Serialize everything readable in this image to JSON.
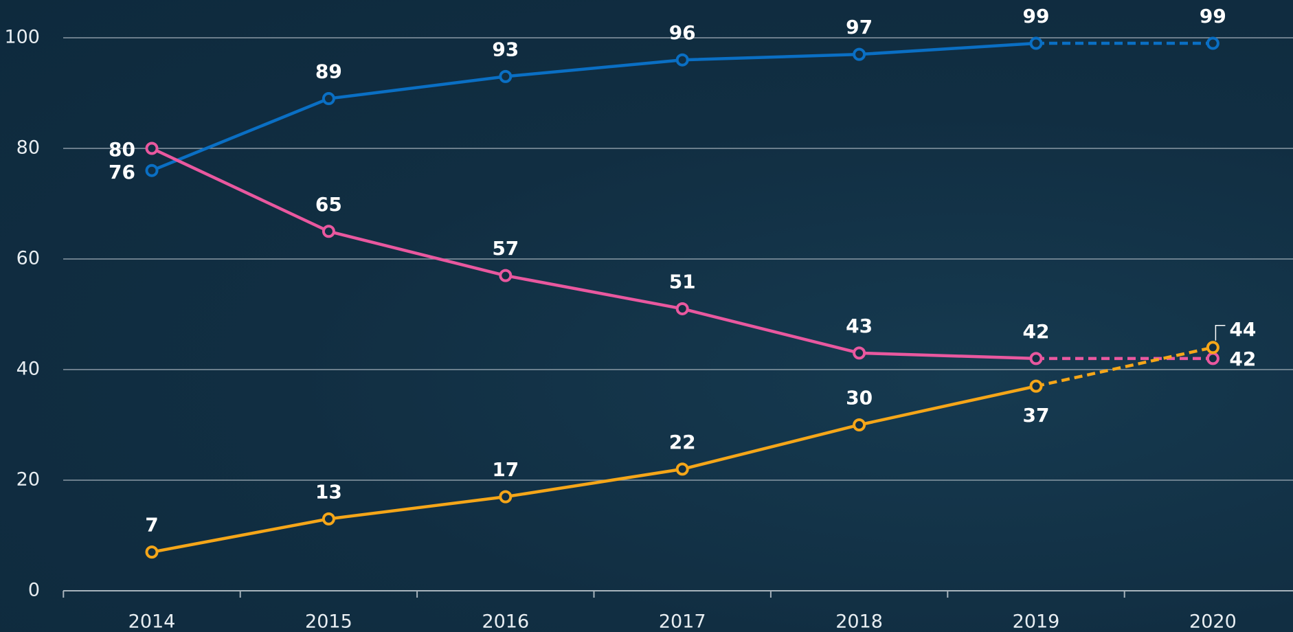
{
  "chart_data": {
    "type": "line",
    "categories": [
      "2014",
      "2015",
      "2016",
      "2017",
      "2018",
      "2019",
      "2020"
    ],
    "series": [
      {
        "color": "#0a6fc4",
        "values": [
          76,
          89,
          93,
          96,
          97,
          99,
          99
        ]
      },
      {
        "color": "#e9589f",
        "values": [
          80,
          65,
          57,
          51,
          43,
          42,
          42
        ]
      },
      {
        "color": "#f5a619",
        "values": [
          7,
          13,
          17,
          22,
          30,
          37,
          44
        ]
      }
    ],
    "ylim": [
      0,
      100
    ],
    "yticks": [
      0,
      20,
      40,
      60,
      80,
      100
    ],
    "grid": true,
    "last_segment_dashed": true
  }
}
